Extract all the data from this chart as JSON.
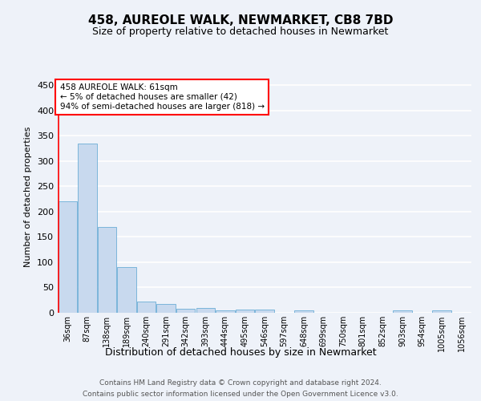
{
  "title": "458, AUREOLE WALK, NEWMARKET, CB8 7BD",
  "subtitle": "Size of property relative to detached houses in Newmarket",
  "xlabel": "Distribution of detached houses by size in Newmarket",
  "ylabel": "Number of detached properties",
  "bar_color": "#c8d9ee",
  "bar_edge_color": "#6baed6",
  "categories": [
    "36sqm",
    "87sqm",
    "138sqm",
    "189sqm",
    "240sqm",
    "291sqm",
    "342sqm",
    "393sqm",
    "444sqm",
    "495sqm",
    "546sqm",
    "597sqm",
    "648sqm",
    "699sqm",
    "750sqm",
    "801sqm",
    "852sqm",
    "903sqm",
    "954sqm",
    "1005sqm",
    "1056sqm"
  ],
  "values": [
    220,
    335,
    170,
    90,
    22,
    18,
    8,
    9,
    5,
    7,
    7,
    0,
    5,
    0,
    0,
    0,
    0,
    5,
    0,
    5,
    0
  ],
  "ylim": [
    0,
    460
  ],
  "yticks": [
    0,
    50,
    100,
    150,
    200,
    250,
    300,
    350,
    400,
    450
  ],
  "annotation_lines": [
    "458 AUREOLE WALK: 61sqm",
    "← 5% of detached houses are smaller (42)",
    "94% of semi-detached houses are larger (818) →"
  ],
  "footer_line1": "Contains HM Land Registry data © Crown copyright and database right 2024.",
  "footer_line2": "Contains public sector information licensed under the Open Government Licence v3.0.",
  "background_color": "#eef2f9",
  "grid_color": "#ffffff"
}
